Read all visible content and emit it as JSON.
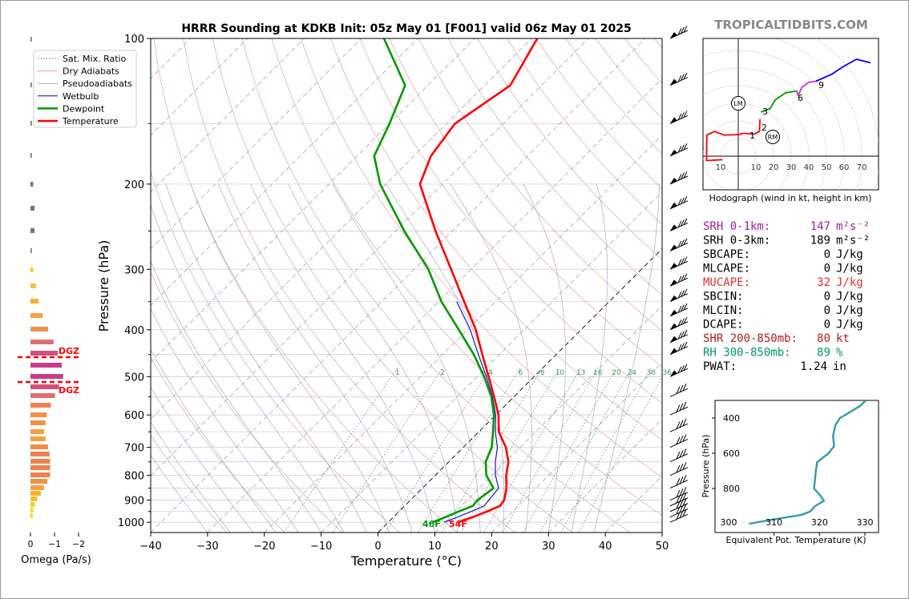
{
  "header": {
    "title": "HRRR Sounding at KDKB Init: 05z May 01 [F001] valid 06z May 01 2025",
    "brand": "TROPICALTIDBITS.COM"
  },
  "legend": {
    "items": [
      {
        "label": "Sat. Mix. Ratio",
        "color": "#2e8b57",
        "style": "dotted"
      },
      {
        "label": "Dry Adiabats",
        "color": "#e0a0a0",
        "style": "solid"
      },
      {
        "label": "Pseudoadiabats",
        "color": "#aaaaaa",
        "style": "solid"
      },
      {
        "label": "Wetbulb",
        "color": "#0000cc",
        "style": "solid"
      },
      {
        "label": "Dewpoint",
        "color": "#009900",
        "style": "solid"
      },
      {
        "label": "Temperature",
        "color": "#ff0000",
        "style": "solid"
      }
    ]
  },
  "omega": {
    "xlabel": "Omega (Pa/s)",
    "ticks": [
      "0",
      "−1",
      "−2"
    ],
    "dgz_label": "DGZ"
  },
  "skewt_labels": {
    "surface_dewpoint": "46F",
    "surface_temperature": "54F",
    "mixing_ratio_labels": [
      "1",
      "2",
      "4",
      "6",
      "8",
      "10",
      "13",
      "16",
      "20",
      "24",
      "30",
      "36"
    ]
  },
  "hodograph": {
    "caption": "Hodograph (wind in kt, height in km)",
    "ring_labels": [
      "10",
      "10",
      "20",
      "30",
      "40",
      "50",
      "60",
      "70"
    ],
    "height_labels": [
      "1",
      "2",
      "3",
      "6",
      "9"
    ],
    "markers": [
      "LM",
      "RM"
    ]
  },
  "indices": [
    {
      "label": "SRH 0-1km:",
      "value": "147",
      "unit": "m²s⁻²",
      "color": "#a020a0"
    },
    {
      "label": "SRH 0-3km:",
      "value": "189",
      "unit": "m²s⁻²",
      "color": "#000000"
    },
    {
      "label": "SBCAPE:",
      "value": "0",
      "unit": "J/kg",
      "color": "#000000"
    },
    {
      "label": "MLCAPE:",
      "value": "0",
      "unit": "J/kg",
      "color": "#000000"
    },
    {
      "label": "MUCAPE:",
      "value": "32",
      "unit": "J/kg",
      "color": "#e03030"
    },
    {
      "label": "SBCIN:",
      "value": "0",
      "unit": "J/kg",
      "color": "#000000"
    },
    {
      "label": "MLCIN:",
      "value": "0",
      "unit": "J/kg",
      "color": "#000000"
    },
    {
      "label": "DCAPE:",
      "value": "0",
      "unit": "J/kg",
      "color": "#000000"
    },
    {
      "label": "SHR 200-850mb:",
      "value": "80",
      "unit": "kt",
      "color": "#b02020"
    },
    {
      "label": "RH 300-850mb:",
      "value": "89",
      "unit": "%",
      "color": "#009966"
    },
    {
      "label": "PWAT:",
      "value": "1.24",
      "unit": "in",
      "color": "#000000"
    }
  ],
  "theta_e_panel": {
    "xlabel": "Equivalent Pot. Temperature (K)",
    "ylabel": "Pressure (hPa)",
    "xticks": [
      310,
      320,
      330
    ],
    "xtick_extra_label": "300",
    "yticks": [
      400,
      600,
      800
    ],
    "xlim": [
      297,
      333
    ],
    "ylim": [
      1050,
      300
    ],
    "color": "#3399aa",
    "profile": [
      {
        "theta_e": 330.2,
        "p": 300
      },
      {
        "theta_e": 329.0,
        "p": 330
      },
      {
        "theta_e": 326.5,
        "p": 370
      },
      {
        "theta_e": 324.5,
        "p": 400
      },
      {
        "theta_e": 323.5,
        "p": 440
      },
      {
        "theta_e": 323.0,
        "p": 500
      },
      {
        "theta_e": 323.2,
        "p": 560
      },
      {
        "theta_e": 322.0,
        "p": 600
      },
      {
        "theta_e": 319.5,
        "p": 650
      },
      {
        "theta_e": 319.2,
        "p": 700
      },
      {
        "theta_e": 319.0,
        "p": 750
      },
      {
        "theta_e": 318.8,
        "p": 800
      },
      {
        "theta_e": 320.2,
        "p": 840
      },
      {
        "theta_e": 321.0,
        "p": 870
      },
      {
        "theta_e": 319.0,
        "p": 900
      },
      {
        "theta_e": 318.0,
        "p": 930
      },
      {
        "theta_e": 316.0,
        "p": 950
      },
      {
        "theta_e": 310.0,
        "p": 975
      },
      {
        "theta_e": 304.5,
        "p": 1000
      }
    ]
  },
  "chart_data": {
    "type": "line",
    "title": "HRRR Sounding at KDKB Init: 05z May 01 [F001] valid 06z May 01 2025",
    "xlabel": "Temperature (°C)",
    "ylabel": "Pressure (hPa)",
    "xlim": [
      -40,
      50
    ],
    "ylim": [
      1050,
      100
    ],
    "xticks": [
      -40,
      -30,
      -20,
      -10,
      0,
      10,
      20,
      30,
      40,
      50
    ],
    "yticks": [
      100,
      200,
      300,
      400,
      500,
      600,
      700,
      800,
      900,
      1000
    ],
    "y_scale": "log",
    "skew": "skew-T",
    "series": [
      {
        "name": "Temperature",
        "color": "#ff0000",
        "points": [
          {
            "p": 1000,
            "t": 12.2
          },
          {
            "p": 975,
            "t": 14.0
          },
          {
            "p": 950,
            "t": 15.5
          },
          {
            "p": 925,
            "t": 16.8
          },
          {
            "p": 900,
            "t": 16.5
          },
          {
            "p": 850,
            "t": 14.8
          },
          {
            "p": 800,
            "t": 12.5
          },
          {
            "p": 750,
            "t": 10.5
          },
          {
            "p": 700,
            "t": 7.5
          },
          {
            "p": 650,
            "t": 3.5
          },
          {
            "p": 600,
            "t": 0.5
          },
          {
            "p": 550,
            "t": -3.5
          },
          {
            "p": 500,
            "t": -8.0
          },
          {
            "p": 450,
            "t": -13.0
          },
          {
            "p": 400,
            "t": -18.5
          },
          {
            "p": 350,
            "t": -25.5
          },
          {
            "p": 300,
            "t": -33.5
          },
          {
            "p": 250,
            "t": -43.0
          },
          {
            "p": 200,
            "t": -54.0
          },
          {
            "p": 175,
            "t": -57.0
          },
          {
            "p": 150,
            "t": -58.5
          },
          {
            "p": 125,
            "t": -55.5
          },
          {
            "p": 100,
            "t": -59.0
          }
        ]
      },
      {
        "name": "Dewpoint",
        "color": "#009900",
        "points": [
          {
            "p": 1000,
            "t": 7.8
          },
          {
            "p": 975,
            "t": 9.2
          },
          {
            "p": 950,
            "t": 10.5
          },
          {
            "p": 925,
            "t": 12.0
          },
          {
            "p": 900,
            "t": 11.8
          },
          {
            "p": 850,
            "t": 12.5
          },
          {
            "p": 800,
            "t": 9.0
          },
          {
            "p": 750,
            "t": 6.5
          },
          {
            "p": 700,
            "t": 5.0
          },
          {
            "p": 650,
            "t": 2.5
          },
          {
            "p": 600,
            "t": -0.3
          },
          {
            "p": 550,
            "t": -4.0
          },
          {
            "p": 500,
            "t": -8.8
          },
          {
            "p": 450,
            "t": -14.5
          },
          {
            "p": 400,
            "t": -21.5
          },
          {
            "p": 350,
            "t": -29.5
          },
          {
            "p": 300,
            "t": -37.5
          },
          {
            "p": 250,
            "t": -48.5
          },
          {
            "p": 200,
            "t": -61.0
          },
          {
            "p": 175,
            "t": -67.0
          },
          {
            "p": 150,
            "t": -70.0
          },
          {
            "p": 125,
            "t": -74.0
          },
          {
            "p": 100,
            "t": -86.0
          }
        ]
      },
      {
        "name": "Wetbulb",
        "color": "#0000cc",
        "points": [
          {
            "p": 1000,
            "t": 9.8
          },
          {
            "p": 975,
            "t": 11.3
          },
          {
            "p": 950,
            "t": 12.7
          },
          {
            "p": 925,
            "t": 14.0
          },
          {
            "p": 900,
            "t": 13.8
          },
          {
            "p": 850,
            "t": 13.4
          },
          {
            "p": 800,
            "t": 10.6
          },
          {
            "p": 750,
            "t": 8.2
          },
          {
            "p": 700,
            "t": 6.0
          },
          {
            "p": 650,
            "t": 2.9
          },
          {
            "p": 600,
            "t": 0.0
          },
          {
            "p": 550,
            "t": -3.8
          },
          {
            "p": 500,
            "t": -8.4
          },
          {
            "p": 450,
            "t": -13.7
          },
          {
            "p": 400,
            "t": -19.5
          },
          {
            "p": 350,
            "t": -26.8
          }
        ]
      }
    ]
  }
}
